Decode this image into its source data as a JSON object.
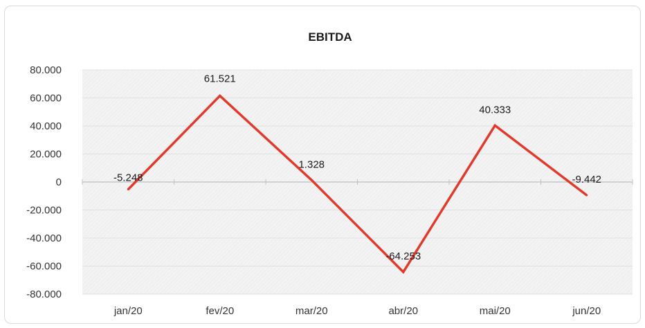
{
  "chart_data": {
    "type": "line",
    "title": "EBITDA",
    "xlabel": "",
    "ylabel": "",
    "categories": [
      "jan/20",
      "fev/20",
      "mar/20",
      "abr/20",
      "mai/20",
      "jun/20"
    ],
    "series": [
      {
        "values": [
          -5248,
          61521,
          1328,
          -64253,
          40333,
          -9442
        ]
      }
    ],
    "data_labels": [
      "-5.248",
      "61.521",
      "1.328",
      "-64.253",
      "40.333",
      "-9.442"
    ],
    "y_ticks": [
      80000,
      60000,
      40000,
      20000,
      0,
      -20000,
      -40000,
      -60000,
      -80000
    ],
    "y_tick_labels": [
      "80.000",
      "60.000",
      "40.000",
      "20.000",
      "0",
      "-20.000",
      "-40.000",
      "-60.000",
      "-80.000"
    ],
    "ylim": [
      -80000,
      80000
    ],
    "grid": true,
    "legend": "none",
    "colors": {
      "line": "#e03a2c",
      "plot_background": "#f2f2f2",
      "gridline": "#e0e0e0",
      "zero_axis": "#bfbfbf"
    }
  }
}
